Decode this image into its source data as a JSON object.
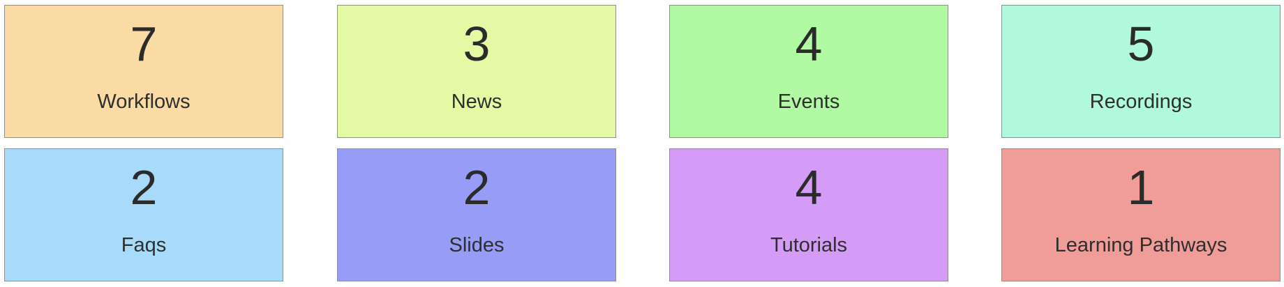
{
  "tiles": [
    {
      "count": "7",
      "label": "Workflows",
      "color": "#f9dba3"
    },
    {
      "count": "3",
      "label": "News",
      "color": "#e3f9a3"
    },
    {
      "count": "4",
      "label": "Events",
      "color": "#b1f9a3"
    },
    {
      "count": "5",
      "label": "Recordings",
      "color": "#b0f9dc"
    },
    {
      "count": "2",
      "label": "Faqs",
      "color": "#a8dbf9"
    },
    {
      "count": "2",
      "label": "Slides",
      "color": "#979cf6"
    },
    {
      "count": "4",
      "label": "Tutorials",
      "color": "#d49cf6"
    },
    {
      "count": "1",
      "label": "Learning Pathways",
      "color": "#f09c98"
    }
  ]
}
